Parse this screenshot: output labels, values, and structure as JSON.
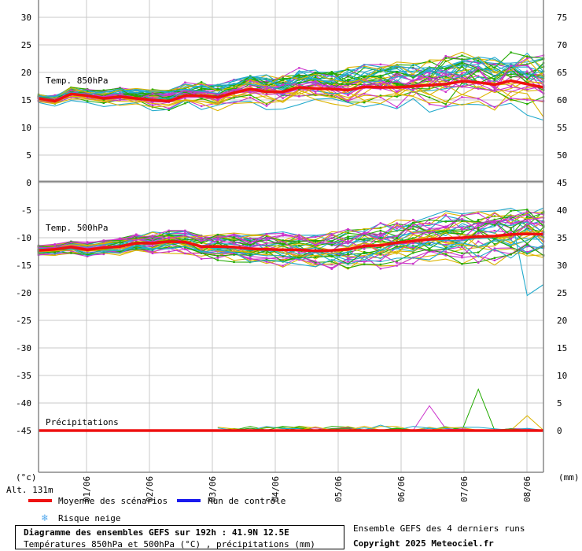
{
  "chart_data": {
    "type": "line",
    "title": "Diagramme des ensembles GEFS sur 192h : 41.9N 12.5E",
    "subtitle": "Températures 850hPa et 500hPa (°C) , précipitations (mm)",
    "x_labels": [
      "01/06",
      "02/06",
      "03/06",
      "04/06",
      "05/06",
      "06/06",
      "07/06",
      "08/06"
    ],
    "left_unit": "(°c)",
    "right_unit": "(mm)",
    "altitude_label": "Alt. 131m",
    "panels": [
      {
        "label": "Temp. 850hPa",
        "left_ticks": [
          "30",
          "25",
          "20",
          "15",
          "10",
          "5",
          "0"
        ],
        "right_ticks": [
          "75",
          "70",
          "65",
          "60",
          "55",
          "50",
          "45"
        ],
        "ylim": [
          0,
          30
        ],
        "mean": [
          15,
          14.5,
          15.8,
          15.5,
          15,
          15.3,
          15,
          14.7,
          14.5,
          15.5,
          15.5,
          15.2,
          16,
          16.7,
          16.2,
          16.2,
          17,
          16.8,
          16.7,
          16.5,
          17.1,
          17,
          17,
          17.2,
          17.4,
          17.6,
          18.1,
          17.9,
          17.5,
          18.2,
          17.6,
          17
        ]
      },
      {
        "label": "Temp. 500hPa",
        "left_ticks": [
          "-5",
          "-10",
          "-15",
          "-20",
          "-25",
          "-30",
          "-35",
          "-40",
          "-45"
        ],
        "right_ticks": [
          "40",
          "35",
          "30",
          "25",
          "20",
          "15",
          "10",
          "5",
          "0"
        ],
        "ylim": [
          -46,
          -3
        ],
        "mean": [
          -12.3,
          -12.1,
          -11.7,
          -12.2,
          -11.8,
          -11.6,
          -11,
          -11,
          -10.7,
          -10.8,
          -11.6,
          -11.6,
          -11.7,
          -12,
          -12.1,
          -12.2,
          -12.2,
          -12.4,
          -12.3,
          -12.1,
          -11.5,
          -11.4,
          -10.9,
          -10.6,
          -10.3,
          -10.1,
          -10,
          -9.8,
          -9.7,
          -9.4,
          -9.3,
          -9.4
        ]
      },
      {
        "label": "Précipitations",
        "ylim": [
          0,
          12
        ],
        "mean": [
          0,
          0,
          0,
          0,
          0,
          0,
          0,
          0,
          0,
          0,
          0,
          0,
          0,
          0,
          0,
          0,
          0,
          0,
          0,
          0,
          0,
          0,
          0,
          0,
          0,
          0,
          0,
          0,
          0,
          0,
          0,
          0
        ],
        "scenario_peaks": [
          0.5,
          0.8,
          4.5,
          1.0,
          7.5,
          2.7
        ]
      }
    ],
    "legend": [
      {
        "label": "Moyenne des scénarios",
        "color": "#ee1111"
      },
      {
        "label": "Run de contrôle",
        "color": "#1a1aee"
      },
      {
        "label": "Risque neige",
        "color": "#55aaee"
      }
    ],
    "scenario_colors": [
      "#22aa00",
      "#dcb400",
      "#cc33cc",
      "#22aacc"
    ],
    "grid": true
  },
  "footer": {
    "title": "Diagramme des ensembles GEFS sur 192h : 41.9N 12.5E",
    "subtitle": "Températures 850hPa et 500hPa (°C) , précipitations (mm)",
    "runs_note": "Ensemble GEFS des 4 derniers runs",
    "copyright": "Copyright 2025 Meteociel.fr"
  }
}
